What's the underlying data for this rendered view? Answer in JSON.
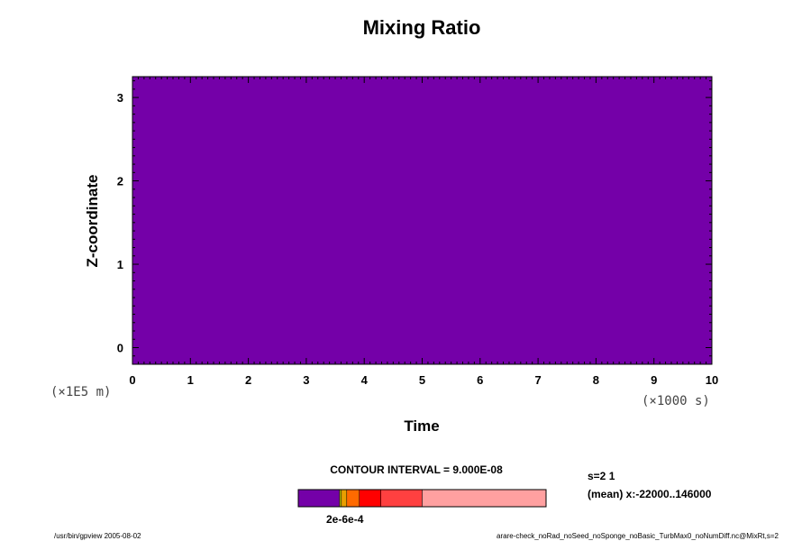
{
  "chart_data": {
    "type": "heatmap",
    "title": "Mixing Ratio",
    "xlabel": "Time",
    "ylabel": "Z-coordinate",
    "x_scale_note": "(×1000 s)",
    "y_scale_note": "(×1E5 m)",
    "xlim": [
      0,
      10
    ],
    "ylim": [
      -0.2,
      3.25
    ],
    "x_ticks": [
      0,
      1,
      2,
      3,
      4,
      5,
      6,
      7,
      8,
      9,
      10
    ],
    "y_ticks": [
      0,
      1,
      2,
      3
    ],
    "field": {
      "x_range": [
        0,
        10
      ],
      "y_range": [
        -0.2,
        3.25
      ],
      "color": "#7400a8",
      "description_level": "uniform lowest contour"
    },
    "colorbar": {
      "label": "CONTOUR INTERVAL = 9.000E-08",
      "segments": [
        {
          "color": "#7400a8",
          "weight": 46
        },
        {
          "color": "#b8b800",
          "weight": 2
        },
        {
          "color": "#e89f00",
          "weight": 6
        },
        {
          "color": "#ff6a00",
          "weight": 14
        },
        {
          "color": "#ff0000",
          "weight": 24
        },
        {
          "color": "#ff4040",
          "weight": 46
        },
        {
          "color": "#ffa0a0",
          "weight": 138
        }
      ],
      "tick_text": "2e-6e-4"
    },
    "info_lines": [
      "s=2 1",
      "(mean) x:-22000..146000"
    ]
  },
  "footer": {
    "left": "/usr/bin/gpview 2005-08-02",
    "right": "arare-check_noRad_noSeed_noSponge_noBasic_TurbMax0_noNumDiff.nc@MixRt,s=2"
  }
}
